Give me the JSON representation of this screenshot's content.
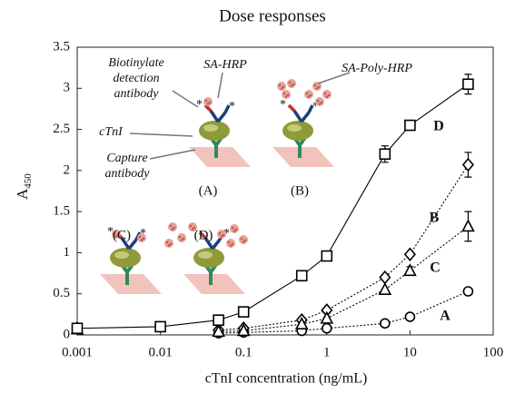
{
  "chart_data": {
    "type": "line",
    "title": "Dose responses",
    "xlabel": "cTnI concentration (ng/mL)",
    "ylabel": "A",
    "ylabel_sub": "450",
    "xscale": "log",
    "xlim": [
      0.001,
      100
    ],
    "xticks": [
      0.001,
      0.01,
      0.1,
      1,
      10,
      100
    ],
    "ylim": [
      0,
      3.5
    ],
    "yticks": [
      0,
      0.5,
      1,
      1.5,
      2,
      2.5,
      3,
      3.5
    ],
    "grid": false,
    "x": [
      0.001,
      0.01,
      0.05,
      0.1,
      0.5,
      1,
      5,
      10,
      50
    ],
    "series": [
      {
        "name": "A",
        "color": "#000000",
        "marker": "circle",
        "dash": "dotted",
        "values": [
          0.07,
          null,
          0.02,
          0.03,
          0.05,
          0.08,
          0.14,
          0.22,
          0.53
        ],
        "errors": [
          null,
          null,
          null,
          null,
          null,
          null,
          null,
          null,
          0.03
        ]
      },
      {
        "name": "B",
        "color": "#000000",
        "marker": "diamond",
        "dash": "dotted",
        "values": [
          0.08,
          null,
          0.06,
          0.08,
          0.18,
          0.3,
          0.7,
          0.98,
          2.07
        ],
        "errors": [
          null,
          null,
          null,
          null,
          null,
          null,
          null,
          null,
          0.15
        ]
      },
      {
        "name": "C",
        "color": "#000000",
        "marker": "triangle",
        "dash": "dotted",
        "values": [
          0.07,
          null,
          0.04,
          0.05,
          0.13,
          0.2,
          0.55,
          0.78,
          1.32
        ],
        "errors": [
          null,
          null,
          null,
          null,
          null,
          null,
          null,
          0.05,
          0.18
        ]
      },
      {
        "name": "D",
        "color": "#000000",
        "marker": "square",
        "dash": "solid",
        "values": [
          0.08,
          0.1,
          0.18,
          0.28,
          0.72,
          0.96,
          2.2,
          2.55,
          3.05
        ],
        "errors": [
          null,
          null,
          null,
          null,
          null,
          null,
          0.1,
          null,
          0.12
        ]
      }
    ],
    "annotations": [
      [
        "Biotinylate",
        "detection",
        "antibody"
      ],
      [
        "SA-HRP"
      ],
      [
        "SA-Poly-HRP"
      ],
      [
        "cTnI"
      ],
      [
        "Capture",
        "antibody"
      ],
      [
        "(A)"
      ],
      [
        "(B)"
      ],
      [
        "(C)"
      ],
      [
        "(D)"
      ]
    ]
  }
}
